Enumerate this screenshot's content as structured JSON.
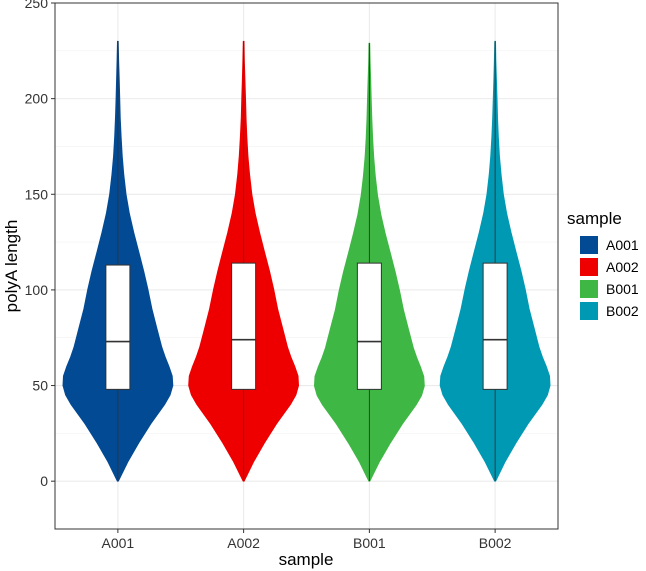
{
  "chart_data": {
    "type": "violin",
    "xlabel": "sample",
    "ylabel": "polyA length",
    "ylim": [
      -25,
      250
    ],
    "yticks": [
      0,
      50,
      100,
      150,
      200,
      250
    ],
    "categories": [
      "A001",
      "A002",
      "B001",
      "B002"
    ],
    "grid": true,
    "legend": {
      "title": "sample",
      "placement": "right",
      "entries": [
        {
          "label": "A001",
          "color": "#034a94"
        },
        {
          "label": "A002",
          "color": "#ee0000"
        },
        {
          "label": "B001",
          "color": "#3fb744"
        },
        {
          "label": "B002",
          "color": "#0099b4"
        }
      ]
    },
    "series": [
      {
        "category": "A001",
        "color": "#034a94",
        "min": 0,
        "max": 230,
        "q1": 48,
        "median": 73,
        "q3": 113
      },
      {
        "category": "A002",
        "color": "#ee0000",
        "min": 0,
        "max": 230,
        "q1": 48,
        "median": 74,
        "q3": 114
      },
      {
        "category": "B001",
        "color": "#3fb744",
        "min": 0,
        "max": 229,
        "q1": 48,
        "median": 73,
        "q3": 114
      },
      {
        "category": "B002",
        "color": "#0099b4",
        "min": 0,
        "max": 230,
        "q1": 48,
        "median": 74,
        "q3": 114
      }
    ],
    "density_profile": {
      "y": [
        0,
        10,
        20,
        30,
        40,
        45,
        50,
        55,
        60,
        65,
        70,
        80,
        90,
        100,
        110,
        120,
        130,
        140,
        150,
        160,
        170,
        180,
        190,
        200,
        210,
        220,
        230
      ],
      "relative_width": [
        0.01,
        0.18,
        0.38,
        0.6,
        0.85,
        0.95,
        1.0,
        0.99,
        0.93,
        0.86,
        0.8,
        0.71,
        0.62,
        0.55,
        0.47,
        0.38,
        0.29,
        0.21,
        0.15,
        0.11,
        0.08,
        0.06,
        0.045,
        0.035,
        0.025,
        0.015,
        0.008
      ]
    }
  }
}
